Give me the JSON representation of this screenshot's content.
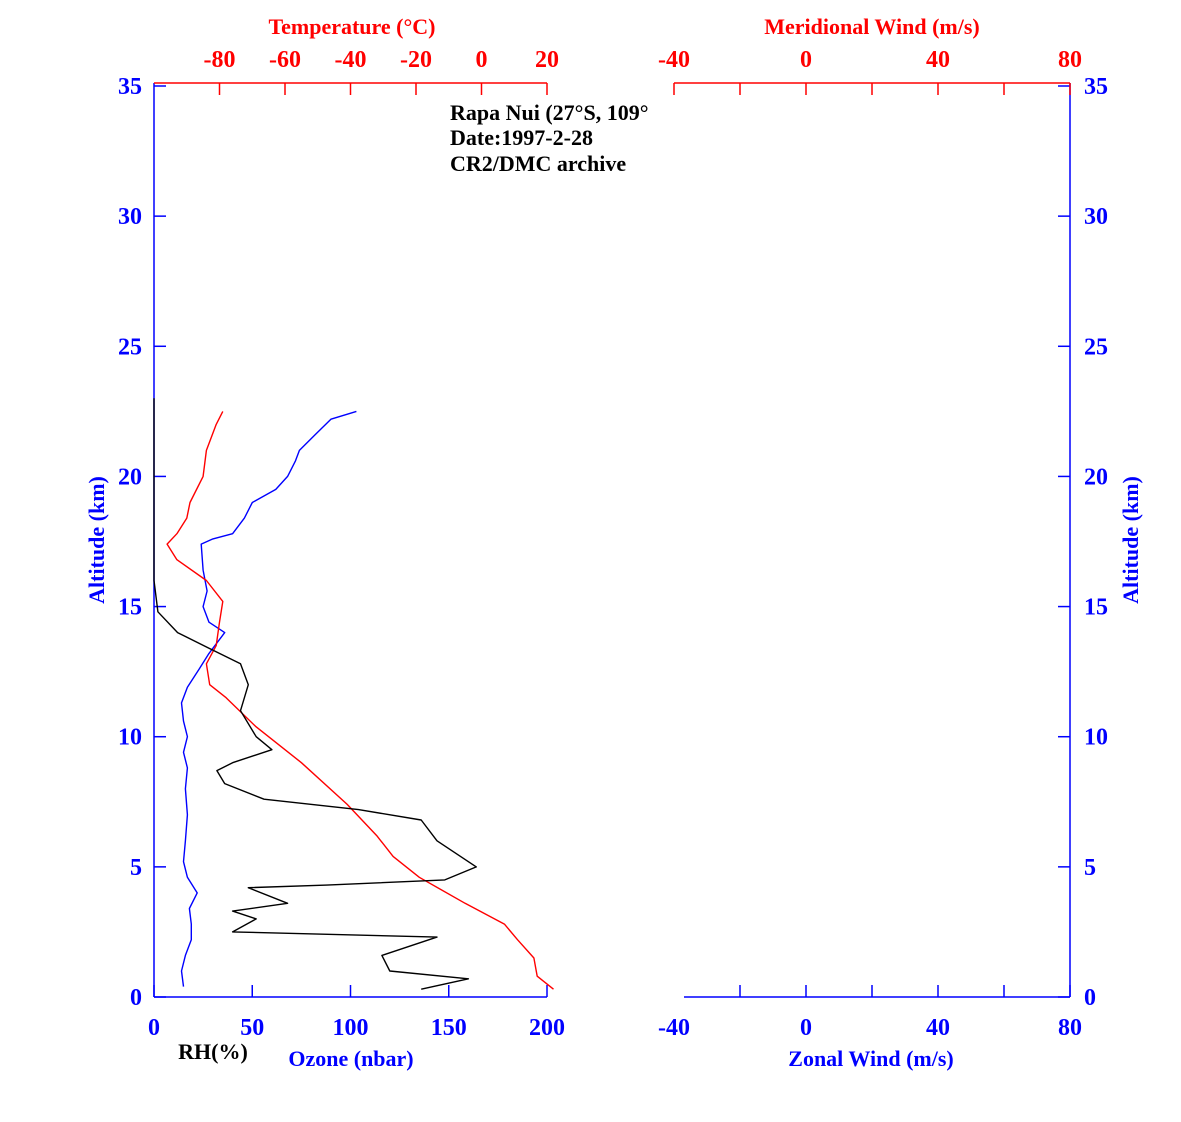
{
  "colors": {
    "blue": "#0000ff",
    "red": "#ff0000",
    "black": "#000000"
  },
  "chart_data": [
    {
      "type": "line",
      "annotation": [
        "Rapa Nui (27°S, 109°",
        "Date:1997-2-28",
        "CR2/DMC archive"
      ],
      "ylabel": "Altitude (km)",
      "ylim": [
        0,
        35
      ],
      "yticks": [
        "0",
        "5",
        "10",
        "15",
        "20",
        "25",
        "30",
        "35"
      ],
      "axes": {
        "bottom": {
          "label": "Ozone (nbar)",
          "range": [
            0,
            200
          ],
          "ticks": [
            "0",
            "50",
            "100",
            "150",
            "200"
          ]
        },
        "bottom_secondary": {
          "label": "RH(%)"
        },
        "top": {
          "label": "Temperature (°C)",
          "range": [
            -100,
            20
          ],
          "ticks": [
            "-80",
            "-60",
            "-40",
            "-20",
            "0",
            "20"
          ]
        }
      },
      "series": [
        {
          "axis": "bottom",
          "color": "#0000ff",
          "points": [
            [
              15,
              0.4
            ],
            [
              14,
              1.0
            ],
            [
              16,
              1.6
            ],
            [
              19,
              2.2
            ],
            [
              19,
              2.8
            ],
            [
              18,
              3.4
            ],
            [
              22,
              4.0
            ],
            [
              17,
              4.6
            ],
            [
              15,
              5.2
            ],
            [
              16,
              6.0
            ],
            [
              17,
              7.0
            ],
            [
              16,
              8.0
            ],
            [
              17,
              8.8
            ],
            [
              15,
              9.4
            ],
            [
              17,
              10.0
            ],
            [
              15,
              10.6
            ],
            [
              14,
              11.3
            ],
            [
              17,
              11.9
            ],
            [
              23,
              12.6
            ],
            [
              28,
              13.2
            ],
            [
              36,
              14.0
            ],
            [
              28,
              14.4
            ],
            [
              25,
              15.0
            ],
            [
              27,
              15.6
            ],
            [
              25,
              16.4
            ],
            [
              24,
              17.4
            ],
            [
              30,
              17.6
            ],
            [
              40,
              17.8
            ],
            [
              46,
              18.4
            ],
            [
              50,
              19.0
            ],
            [
              62,
              19.5
            ],
            [
              68,
              20.0
            ],
            [
              72,
              20.6
            ],
            [
              74,
              21.0
            ],
            [
              82,
              21.6
            ],
            [
              90,
              22.2
            ],
            [
              103,
              22.5
            ]
          ]
        },
        {
          "axis": "top",
          "color": "#ff0000",
          "points": [
            [
              22,
              0.3
            ],
            [
              17,
              0.8
            ],
            [
              16,
              1.5
            ],
            [
              11,
              2.2
            ],
            [
              7,
              2.8
            ],
            [
              -5,
              3.6
            ],
            [
              -19,
              4.6
            ],
            [
              -27,
              5.4
            ],
            [
              -32,
              6.2
            ],
            [
              -41,
              7.4
            ],
            [
              -55,
              9.0
            ],
            [
              -69,
              10.4
            ],
            [
              -78,
              11.5
            ],
            [
              -83,
              12.0
            ],
            [
              -84,
              12.8
            ],
            [
              -81,
              13.5
            ],
            [
              -80,
              14.4
            ],
            [
              -79,
              15.2
            ],
            [
              -84,
              16.0
            ],
            [
              -93,
              16.8
            ],
            [
              -96,
              17.4
            ],
            [
              -93,
              17.8
            ],
            [
              -90,
              18.4
            ],
            [
              -89,
              19.0
            ],
            [
              -85,
              20.0
            ],
            [
              -84,
              21.0
            ],
            [
              -81,
              22.0
            ],
            [
              -79,
              22.5
            ]
          ]
        },
        {
          "axis": "bottom_secondary",
          "color": "#000000",
          "points": [
            [
              68,
              0.3
            ],
            [
              80,
              0.7
            ],
            [
              60,
              1.0
            ],
            [
              58,
              1.6
            ],
            [
              72,
              2.3
            ],
            [
              20,
              2.5
            ],
            [
              26,
              3.0
            ],
            [
              20,
              3.3
            ],
            [
              34,
              3.6
            ],
            [
              24,
              4.2
            ],
            [
              44,
              4.3
            ],
            [
              74,
              4.5
            ],
            [
              82,
              5.0
            ],
            [
              72,
              6.0
            ],
            [
              68,
              6.8
            ],
            [
              52,
              7.2
            ],
            [
              28,
              7.6
            ],
            [
              18,
              8.2
            ],
            [
              16,
              8.7
            ],
            [
              20,
              9.0
            ],
            [
              30,
              9.5
            ],
            [
              26,
              10.0
            ],
            [
              22,
              11.0
            ],
            [
              24,
              12.0
            ],
            [
              22,
              12.8
            ],
            [
              14,
              13.4
            ],
            [
              6,
              14.0
            ],
            [
              1,
              14.8
            ],
            [
              0,
              16.0
            ],
            [
              0,
              23.0
            ]
          ]
        }
      ]
    },
    {
      "type": "line",
      "ylabel": "Altitude (km)",
      "ylim": [
        0,
        35
      ],
      "yticks": [
        "0",
        "5",
        "10",
        "15",
        "20",
        "25",
        "30",
        "35"
      ],
      "axes": {
        "bottom": {
          "label": "Zonal Wind (m/s)",
          "range": [
            -40,
            80
          ],
          "ticks": [
            "-40",
            "0",
            "40",
            "80"
          ]
        },
        "top": {
          "label": "Meridional Wind (m/s)",
          "range": [
            -40,
            80
          ],
          "ticks": [
            "-40",
            "0",
            "40",
            "80"
          ]
        }
      },
      "series": []
    }
  ]
}
